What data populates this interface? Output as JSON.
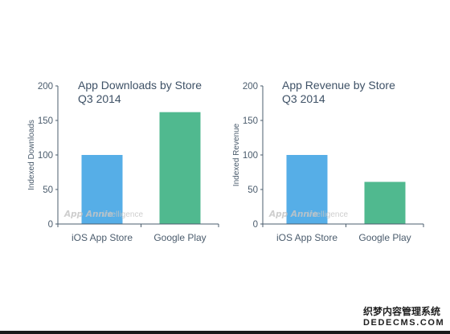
{
  "chart_data": [
    {
      "type": "bar",
      "title": "App Downloads by Store",
      "subtitle": "Q3 2014",
      "xlabel": "",
      "ylabel": "Indexed Downloads",
      "categories": [
        "iOS App Store",
        "Google Play"
      ],
      "values": [
        100,
        162
      ],
      "ylim": [
        0,
        200
      ],
      "yticks": [
        0,
        50,
        100,
        150,
        200
      ],
      "colors": [
        "#56aee7",
        "#50b98f"
      ],
      "grid": false,
      "watermark": {
        "brand": "App Annie",
        "suffix": "intelligence"
      }
    },
    {
      "type": "bar",
      "title": "App Revenue by Store",
      "subtitle": "Q3 2014",
      "xlabel": "",
      "ylabel": "Indexed Revenue",
      "categories": [
        "iOS App Store",
        "Google Play"
      ],
      "values": [
        100,
        61
      ],
      "ylim": [
        0,
        200
      ],
      "yticks": [
        0,
        50,
        100,
        150,
        200
      ],
      "colors": [
        "#56aee7",
        "#50b98f"
      ],
      "grid": false,
      "watermark": {
        "brand": "App Annie",
        "suffix": "intelligence"
      }
    }
  ],
  "site_watermark": {
    "line1": "织梦内容管理系统",
    "line2": "DEDECMS.COM"
  },
  "colors": {
    "axis": "#4b5c6d",
    "title": "#3e5166",
    "watermark": "#c6c6c6"
  }
}
